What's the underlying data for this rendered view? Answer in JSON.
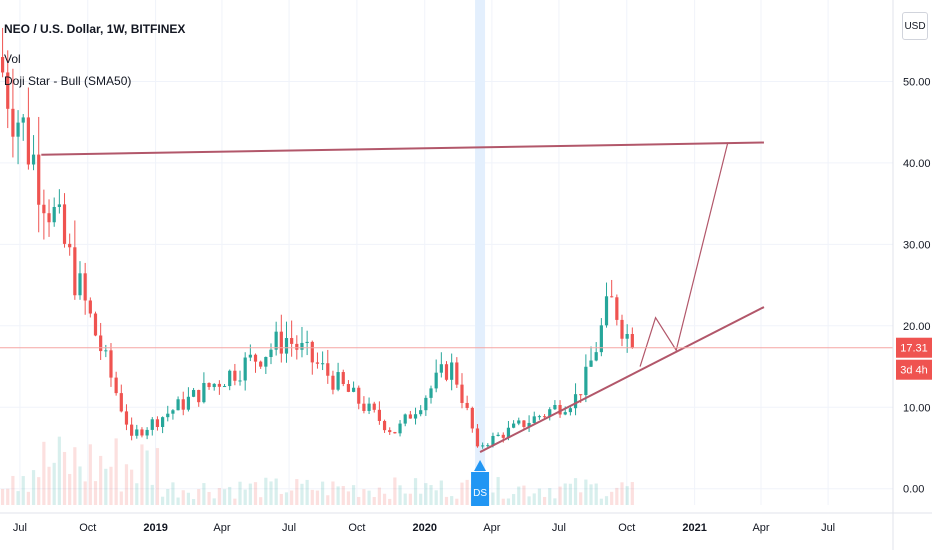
{
  "header": {
    "title": "NEO / U.S. Dollar, 1W, BITFINEX",
    "vol_label": "Vol",
    "indicator_label": "Doji Star - Bull (SMA50)"
  },
  "currency_button": "USD",
  "chart_data": {
    "type": "candlestick",
    "y_axis": {
      "ylim": [
        -2,
        60
      ],
      "ticks": [
        0,
        10,
        20,
        30,
        40,
        50
      ],
      "tick_labels": [
        "0.00",
        "10.00",
        "20.00",
        "30.00",
        "40.00",
        "50.00"
      ],
      "position": "right"
    },
    "x_axis": {
      "range": [
        "2018-06-04",
        "2021-09-27"
      ],
      "tick_dates": [
        "2018-07-01",
        "2018-10-01",
        "2019-01-01",
        "2019-04-01",
        "2019-07-01",
        "2019-10-01",
        "2020-01-01",
        "2020-04-01",
        "2020-07-01",
        "2020-10-01",
        "2021-01-01",
        "2021-04-01",
        "2021-07-01"
      ],
      "tick_labels": [
        "Jul",
        "Oct",
        "2019",
        "Apr",
        "Jul",
        "Oct",
        "2020",
        "Apr",
        "Jul",
        "Oct",
        "2021",
        "Apr",
        "Jul"
      ],
      "bold_labels": [
        "2019",
        "2020",
        "2021"
      ]
    },
    "up_color": "#26a69a",
    "down_color": "#ef5350",
    "segments": [
      {
        "start": "2018-06-04",
        "weeks": 26,
        "open": 53,
        "close": 6.5
      },
      {
        "start": "2018-12-03",
        "weeks": 30,
        "open": 6.5,
        "close": 18.5
      },
      {
        "start": "2019-07-01",
        "weeks": 21,
        "open": 18.5,
        "close": 6.8
      },
      {
        "start": "2019-11-25",
        "weeks": 11,
        "open": 6.8,
        "close": 15.5
      },
      {
        "start": "2020-02-10",
        "weeks": 5,
        "open": 15.5,
        "close": 5.2
      },
      {
        "start": "2020-03-16",
        "weeks": 20,
        "open": 5.2,
        "close": 11.5
      },
      {
        "start": "2020-08-03",
        "weeks": 6,
        "open": 11.5,
        "close": 23.5
      },
      {
        "start": "2020-09-14",
        "weeks": 4,
        "open": 23.5,
        "close": 17.31
      }
    ],
    "current_price": {
      "value": 17.31,
      "label": "17.31",
      "countdown": "3d 4h",
      "color": "#ef5350"
    },
    "signal": {
      "date": "2020-03-16",
      "label": "DS",
      "color": "#2196f3"
    },
    "drawings": {
      "color": "#b2576a",
      "resistance_line": [
        [
          "2018-07-30",
          41
        ],
        [
          "2021-04-05",
          42.5
        ]
      ],
      "support_line": [
        [
          "2020-03-16",
          4.5
        ],
        [
          "2021-04-05",
          22.3
        ]
      ],
      "projection_path": [
        [
          "2020-10-19",
          15
        ],
        [
          "2020-11-09",
          21
        ],
        [
          "2020-12-07",
          17
        ],
        [
          "2021-02-15",
          42.5
        ]
      ]
    }
  }
}
